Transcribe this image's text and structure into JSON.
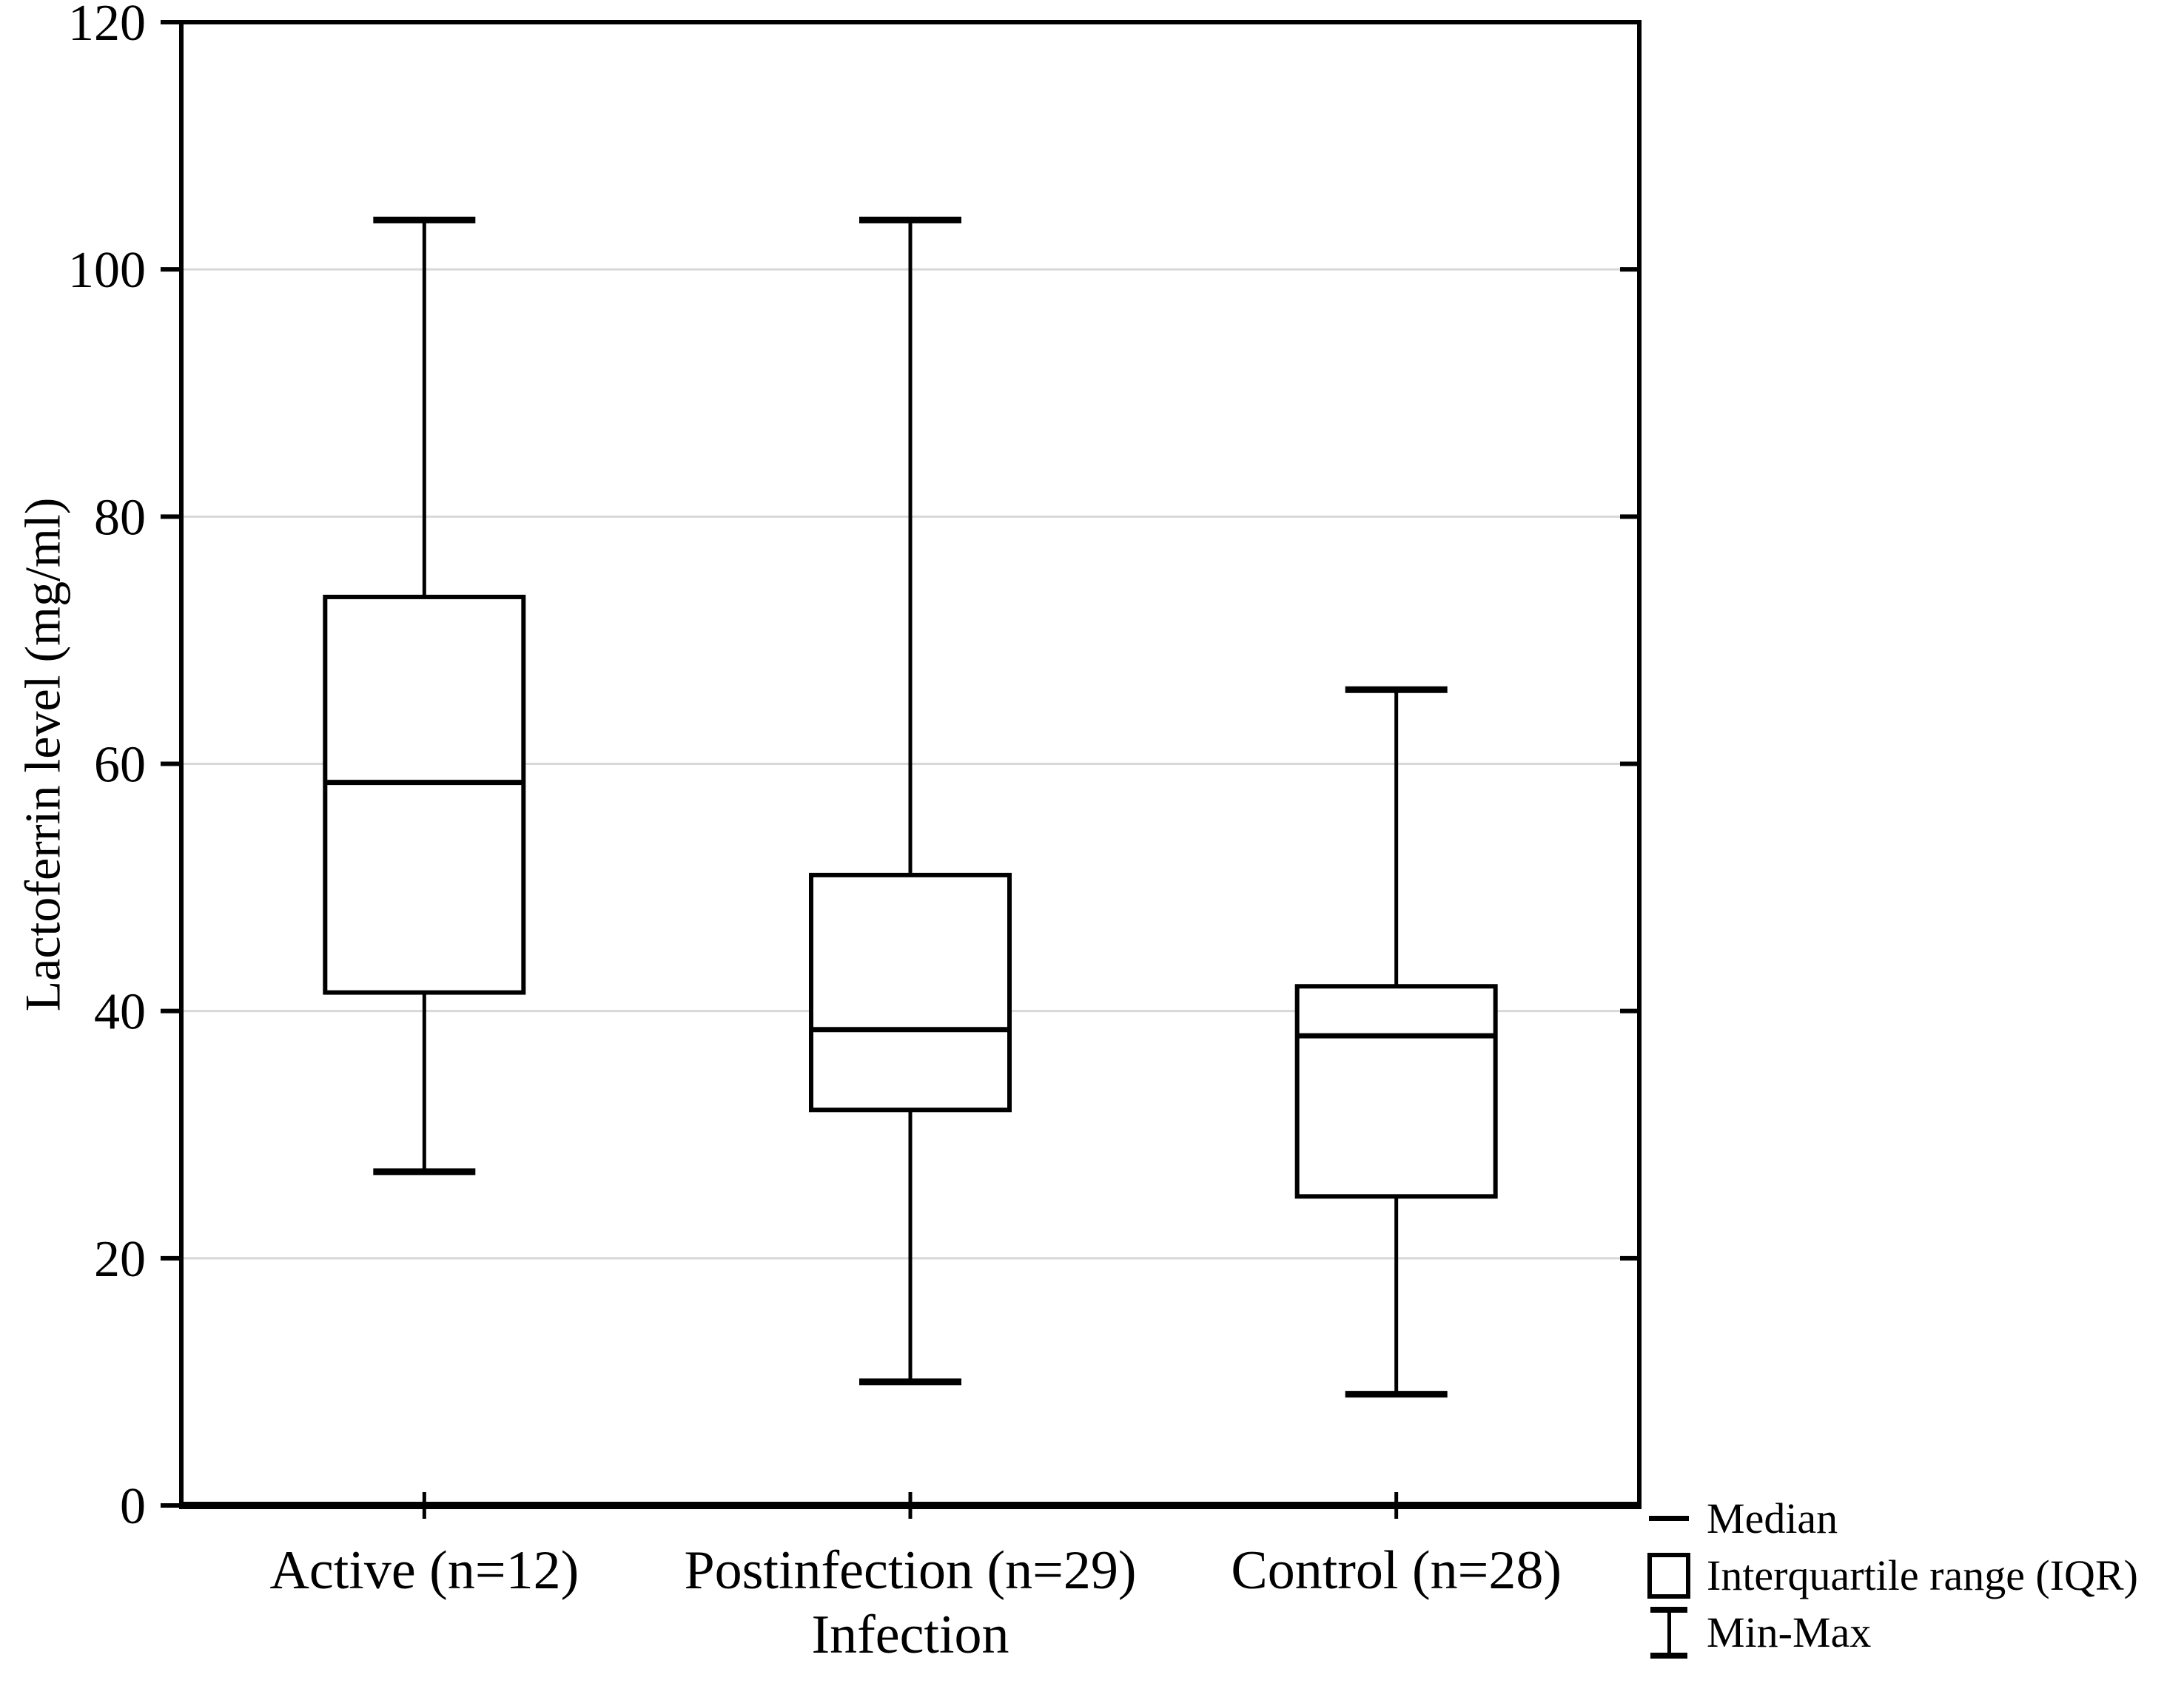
{
  "chart_data": {
    "type": "boxplot",
    "xlabel": "Infection",
    "ylabel": "Lactoferrin level (mg/ml)",
    "ylim": [
      0,
      120
    ],
    "yticks": [
      0,
      20,
      40,
      60,
      80,
      100,
      120
    ],
    "grid": "horizontal",
    "categories": [
      "Active (n=12)",
      "Postinfection (n=29)",
      "Control (n=28)"
    ],
    "series": [
      {
        "name": "Active (n=12)",
        "group": "Active",
        "n": 12,
        "min": 27,
        "q1": 41.5,
        "median": 58.5,
        "q3": 73.5,
        "max": 104
      },
      {
        "name": "Postinfection (n=29)",
        "group": "Postinfection",
        "n": 29,
        "min": 10,
        "q1": 32,
        "median": 38.5,
        "q3": 51,
        "max": 104
      },
      {
        "name": "Control (n=28)",
        "group": "Control",
        "n": 28,
        "min": 9,
        "q1": 25,
        "median": 38,
        "q3": 42,
        "max": 66
      }
    ],
    "legend": {
      "position": "bottom-right",
      "items": [
        {
          "symbol": "median-line",
          "label": "Median"
        },
        {
          "symbol": "iqr-box",
          "label": "Interquartile range (IQR)"
        },
        {
          "symbol": "min-max-whisker",
          "label": "Min-Max"
        }
      ]
    },
    "colors": {
      "line": "#000000",
      "gridline": "#d8d8d8",
      "box_fill": "#ffffff",
      "background": "#ffffff"
    }
  }
}
